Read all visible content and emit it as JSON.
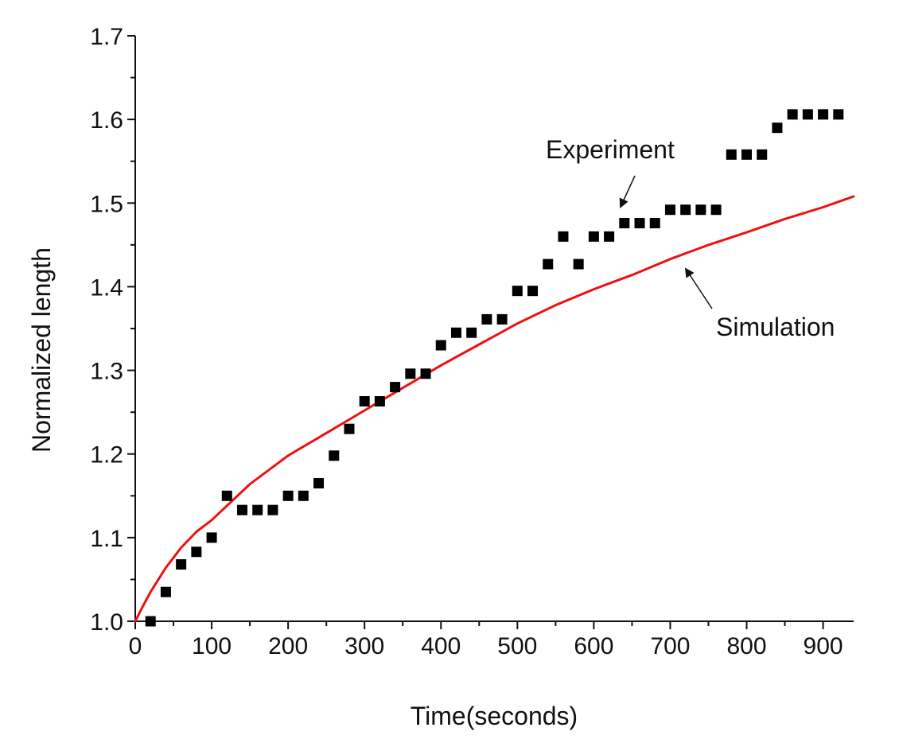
{
  "chart_data": {
    "type": "scatter",
    "title": "",
    "xlabel": "Time(seconds)",
    "ylabel": "Normalized length",
    "xlim": [
      0,
      940
    ],
    "ylim": [
      1.0,
      1.7
    ],
    "x_ticks": [
      0,
      100,
      200,
      300,
      400,
      500,
      600,
      700,
      800,
      900
    ],
    "x_tick_labels": [
      "0",
      "100",
      "200",
      "300",
      "400",
      "500",
      "600",
      "700",
      "800",
      "900"
    ],
    "y_ticks": [
      1.0,
      1.1,
      1.2,
      1.3,
      1.4,
      1.5,
      1.6,
      1.7
    ],
    "y_tick_labels": [
      "1.0",
      "1.1",
      "1.2",
      "1.3",
      "1.4",
      "1.5",
      "1.6",
      "1.7"
    ],
    "grid": false,
    "series": [
      {
        "name": "Experiment",
        "kind": "scatter",
        "color": "#000000",
        "marker": "square",
        "x": [
          20,
          40,
          60,
          80,
          100,
          120,
          140,
          160,
          180,
          200,
          220,
          240,
          260,
          280,
          300,
          320,
          340,
          360,
          380,
          400,
          420,
          440,
          460,
          480,
          500,
          520,
          540,
          560,
          580,
          600,
          620,
          640,
          660,
          680,
          700,
          720,
          740,
          760,
          780,
          800,
          820,
          840,
          860,
          880,
          900,
          920
        ],
        "y": [
          1.0,
          1.035,
          1.068,
          1.083,
          1.1,
          1.15,
          1.133,
          1.133,
          1.133,
          1.15,
          1.15,
          1.165,
          1.198,
          1.23,
          1.263,
          1.263,
          1.28,
          1.296,
          1.296,
          1.33,
          1.345,
          1.345,
          1.361,
          1.361,
          1.395,
          1.395,
          1.427,
          1.46,
          1.427,
          1.46,
          1.46,
          1.476,
          1.476,
          1.476,
          1.492,
          1.492,
          1.492,
          1.492,
          1.558,
          1.558,
          1.558,
          1.59,
          1.606,
          1.606,
          1.606,
          1.606
        ]
      },
      {
        "name": "Simulation",
        "kind": "line",
        "color": "#ee1111",
        "x": [
          0,
          10,
          20,
          40,
          60,
          80,
          100,
          150,
          200,
          250,
          300,
          350,
          400,
          450,
          500,
          550,
          600,
          650,
          700,
          750,
          800,
          850,
          900,
          940
        ],
        "y": [
          1.0,
          1.018,
          1.035,
          1.064,
          1.088,
          1.107,
          1.121,
          1.164,
          1.198,
          1.225,
          1.252,
          1.279,
          1.306,
          1.331,
          1.356,
          1.378,
          1.397,
          1.414,
          1.433,
          1.45,
          1.465,
          1.481,
          1.495,
          1.508
        ]
      }
    ],
    "annotations": [
      {
        "text": "Experiment",
        "points_to": "Experiment",
        "target": [
          637,
          1.476
        ]
      },
      {
        "text": "Simulation",
        "points_to": "Simulation",
        "target": [
          715,
          1.43
        ]
      }
    ]
  }
}
